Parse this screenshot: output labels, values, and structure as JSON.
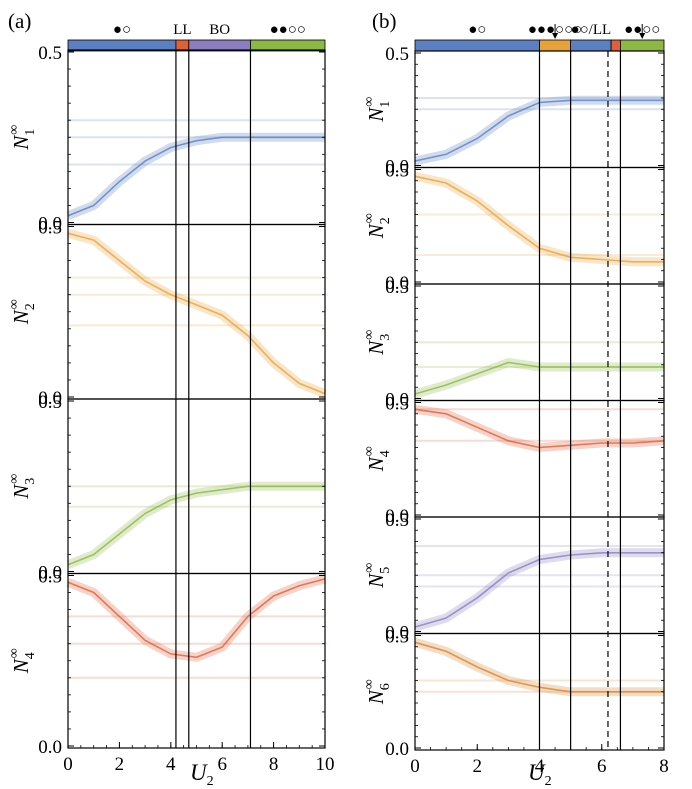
{
  "figure": {
    "panel_a_label": "(a)",
    "panel_b_label": "(b)",
    "xlabel_main": "U",
    "xlabel_sub": "2"
  },
  "colors": {
    "blue": "#5b7fc1",
    "orange": "#e8a23a",
    "green": "#8db845",
    "red": "#e0603a",
    "purple": "#8a7ec0",
    "brown": "#d9862e"
  },
  "chart_data": [
    {
      "id": "a",
      "type": "line",
      "xlim": [
        0,
        10
      ],
      "xticks": [
        0,
        2,
        4,
        6,
        8,
        10
      ],
      "ylim": [
        0,
        0.5
      ],
      "yticks": [
        0.0,
        0.5
      ],
      "ytick_labels": [
        "0.0",
        "0.5"
      ],
      "phase_boundaries": [
        4.2,
        4.7,
        7.1
      ],
      "dashed_boundaries": [],
      "phases": [
        {
          "label": "●○",
          "from": 0,
          "to": 4.2,
          "color": "#5b7fc1"
        },
        {
          "label": "LL",
          "from": 4.2,
          "to": 4.7,
          "color": "#e0603a"
        },
        {
          "label": "BO",
          "from": 4.7,
          "to": 7.1,
          "color": "#8a7ec0"
        },
        {
          "label": "●●○○",
          "from": 7.1,
          "to": 10,
          "color": "#8db845"
        }
      ],
      "subplots": [
        {
          "ylabel": "N",
          "sub": "1",
          "sup": "∞",
          "color": "#5b7fc1",
          "x": [
            0,
            1,
            2,
            3,
            4,
            5,
            6,
            7,
            7.1,
            8,
            9,
            10
          ],
          "y": [
            0.02,
            0.05,
            0.12,
            0.18,
            0.22,
            0.24,
            0.25,
            0.25,
            0.25,
            0.25,
            0.25,
            0.25
          ],
          "bands": [
            0.25,
            0.17,
            0.3
          ]
        },
        {
          "ylabel": "N",
          "sub": "2",
          "sup": "∞",
          "color": "#e8a23a",
          "x": [
            0,
            1,
            2,
            3,
            4,
            5,
            6,
            7,
            8,
            9,
            10
          ],
          "y": [
            0.48,
            0.46,
            0.4,
            0.34,
            0.3,
            0.27,
            0.24,
            0.18,
            0.1,
            0.04,
            0.01
          ],
          "bands": [
            0.35,
            0.21,
            0.3
          ]
        },
        {
          "ylabel": "N",
          "sub": "3",
          "sup": "∞",
          "color": "#8db845",
          "x": [
            0,
            1,
            2,
            3,
            4,
            5,
            6,
            7,
            8,
            9,
            10
          ],
          "y": [
            0.02,
            0.05,
            0.11,
            0.17,
            0.21,
            0.23,
            0.24,
            0.25,
            0.25,
            0.25,
            0.25
          ],
          "bands": [
            0.25,
            0.19
          ]
        },
        {
          "ylabel": "N",
          "sub": "4",
          "sup": "∞",
          "color": "#e0603a",
          "x": [
            0,
            1,
            2,
            3,
            4,
            5,
            6,
            7,
            8,
            9,
            10
          ],
          "y": [
            0.48,
            0.45,
            0.38,
            0.31,
            0.27,
            0.26,
            0.29,
            0.38,
            0.44,
            0.47,
            0.49
          ],
          "bands": [
            0.3,
            0.2,
            0.38
          ]
        }
      ]
    },
    {
      "id": "b",
      "type": "line",
      "xlim": [
        0,
        8
      ],
      "xticks": [
        0,
        2,
        4,
        6,
        8
      ],
      "ylim": [
        0,
        0.5
      ],
      "yticks": [
        0.0,
        0.5
      ],
      "ytick_labels": [
        "0.0",
        "0.5"
      ],
      "phase_boundaries": [
        4.0,
        5.0,
        6.6
      ],
      "dashed_boundaries": [
        6.2
      ],
      "phases": [
        {
          "label": "●○",
          "from": 0,
          "to": 4.0,
          "color": "#5b7fc1"
        },
        {
          "label": "●●●○○○",
          "from": 4.0,
          "to": 5.0,
          "color": "#e8a23a"
        },
        {
          "label": "●○/LL",
          "from": 5.0,
          "to": 6.3,
          "color": "#5b7fc1"
        },
        {
          "label": "",
          "from": 6.3,
          "to": 6.6,
          "color": "#e0603a"
        },
        {
          "label": "●●○○",
          "from": 6.6,
          "to": 8,
          "color": "#8db845"
        }
      ],
      "subplots": [
        {
          "ylabel": "N",
          "sub": "1",
          "sup": "∞",
          "color": "#5b7fc1",
          "x": [
            0,
            1,
            2,
            3,
            4,
            5,
            6,
            7,
            8
          ],
          "y": [
            0.02,
            0.05,
            0.12,
            0.22,
            0.28,
            0.29,
            0.29,
            0.29,
            0.29
          ],
          "bands": [
            0.25,
            0.3
          ]
        },
        {
          "ylabel": "N",
          "sub": "2",
          "sup": "∞",
          "color": "#e8a23a",
          "x": [
            0,
            1,
            2,
            3,
            4,
            5,
            6,
            7,
            8
          ],
          "y": [
            0.47,
            0.44,
            0.36,
            0.25,
            0.15,
            0.11,
            0.1,
            0.09,
            0.09
          ],
          "bands": [
            0.12,
            0.3
          ]
        },
        {
          "ylabel": "N",
          "sub": "3",
          "sup": "∞",
          "color": "#8db845",
          "x": [
            0,
            1,
            2,
            3,
            4,
            5,
            6,
            7,
            8
          ],
          "y": [
            0.02,
            0.06,
            0.11,
            0.16,
            0.14,
            0.14,
            0.14,
            0.14,
            0.14
          ],
          "bands": [
            0.25,
            0.14
          ]
        },
        {
          "ylabel": "N",
          "sub": "4",
          "sup": "∞",
          "color": "#e0603a",
          "x": [
            0,
            1,
            2,
            3,
            4,
            5,
            6,
            7,
            8
          ],
          "y": [
            0.47,
            0.45,
            0.39,
            0.33,
            0.3,
            0.31,
            0.32,
            0.32,
            0.33
          ],
          "bands": [
            0.33,
            0.47
          ]
        },
        {
          "ylabel": "N",
          "sub": "5",
          "sup": "∞",
          "color": "#8a7ec0",
          "x": [
            0,
            1,
            2,
            3,
            4,
            5,
            6,
            7,
            8
          ],
          "y": [
            0.02,
            0.06,
            0.15,
            0.26,
            0.32,
            0.34,
            0.35,
            0.35,
            0.35
          ],
          "bands": [
            0.25,
            0.38,
            0.2
          ]
        },
        {
          "ylabel": "N",
          "sub": "6",
          "sup": "∞",
          "color": "#d9862e",
          "x": [
            0,
            1,
            2,
            3,
            4,
            5,
            6,
            7,
            8
          ],
          "y": [
            0.47,
            0.43,
            0.36,
            0.3,
            0.27,
            0.25,
            0.25,
            0.25,
            0.25
          ],
          "bands": [
            0.25,
            0.3
          ]
        }
      ]
    }
  ]
}
